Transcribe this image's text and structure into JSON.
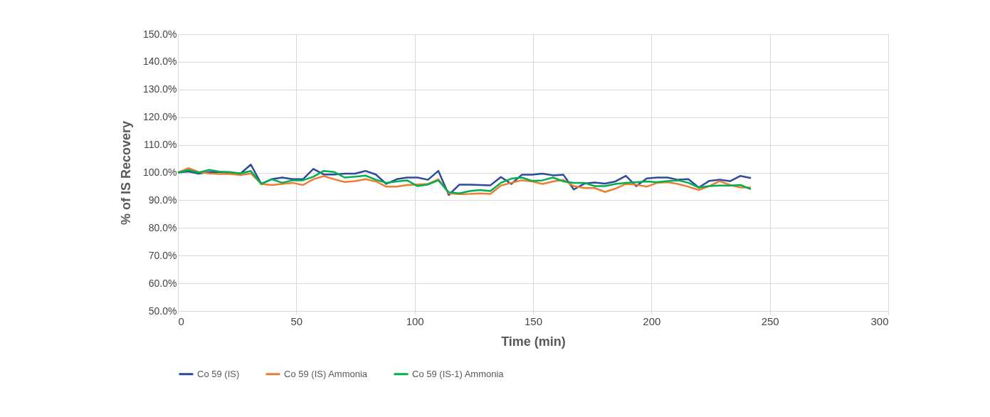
{
  "chart_data": {
    "type": "line",
    "xlabel": "Time (min)",
    "ylabel": "% of IS Recovery",
    "x": [
      0,
      4.4,
      8.8,
      13.2,
      17.6,
      22,
      26.4,
      30.8,
      35.2,
      39.6,
      44,
      48.4,
      52.8,
      57.2,
      61.6,
      66,
      70.4,
      74.8,
      79.2,
      83.6,
      88,
      92.4,
      96.8,
      101.2,
      105.6,
      110,
      114.4,
      118.8,
      123.2,
      127.6,
      132,
      136.4,
      140.8,
      145.2,
      149.6,
      154,
      158.4,
      162.8,
      167.2,
      171.6,
      176,
      180.4,
      184.8,
      189.2,
      193.6,
      198,
      202.4,
      206.8,
      211.2,
      215.6,
      220,
      224.4,
      228.8,
      233.2,
      237.6,
      242
    ],
    "series": [
      {
        "name": "Co 59 (IS)",
        "color": "#2e4a9c",
        "values": [
          100.0,
          100.4,
          99.6,
          100.2,
          100.2,
          99.9,
          99.6,
          102.9,
          95.9,
          97.6,
          98.2,
          97.6,
          97.6,
          101.3,
          99.3,
          99.3,
          99.6,
          99.6,
          100.6,
          99.3,
          95.9,
          97.6,
          98.2,
          98.2,
          97.4,
          100.6,
          91.9,
          95.6,
          95.6,
          95.5,
          95.4,
          98.4,
          95.9,
          99.2,
          99.2,
          99.6,
          99.0,
          99.2,
          93.9,
          96.0,
          96.4,
          96.0,
          96.8,
          98.8,
          95.1,
          97.9,
          98.2,
          98.2,
          97.4,
          97.6,
          94.6,
          97.0,
          97.4,
          96.9,
          98.8,
          98.0
        ]
      },
      {
        "name": "Co 59 (IS) Ammonia",
        "color": "#ed7d31",
        "values": [
          100.0,
          101.6,
          100.2,
          99.7,
          99.5,
          99.5,
          99.1,
          99.7,
          95.9,
          95.5,
          95.9,
          96.3,
          95.5,
          97.6,
          98.7,
          97.6,
          96.6,
          96.9,
          97.6,
          96.8,
          94.9,
          94.9,
          95.5,
          95.7,
          95.9,
          97.6,
          92.5,
          92.2,
          92.3,
          92.5,
          92.3,
          95.3,
          96.3,
          97.2,
          96.8,
          95.9,
          96.8,
          97.4,
          95.1,
          94.4,
          94.4,
          93.0,
          94.2,
          95.9,
          95.6,
          94.9,
          96.3,
          96.5,
          95.9,
          94.9,
          93.7,
          95.1,
          96.9,
          95.5,
          94.6,
          94.6
        ]
      },
      {
        "name": "Co 59 (IS-1) Ammonia",
        "color": "#00b050",
        "values": [
          100,
          100.9,
          100,
          101,
          100.3,
          100.2,
          99.7,
          100.6,
          95.9,
          97.6,
          96.3,
          97.2,
          97.2,
          98.5,
          100.6,
          100.2,
          98.2,
          98.5,
          98.9,
          97.4,
          96.3,
          96.8,
          97.2,
          95.1,
          95.7,
          97.2,
          92.9,
          92.5,
          93.3,
          93.7,
          93.3,
          96.3,
          97.8,
          98.2,
          97.0,
          97.2,
          98.2,
          96.8,
          96.3,
          96.3,
          95.1,
          95.1,
          95.9,
          96.3,
          96.5,
          96.8,
          96.5,
          96.9,
          97.2,
          96.3,
          94.6,
          95.1,
          95.3,
          95.3,
          95.5,
          94.0
        ]
      }
    ],
    "xlim": [
      0,
      300
    ],
    "xticks": [
      0,
      50,
      100,
      150,
      200,
      250,
      300
    ],
    "ylim": [
      50,
      150
    ],
    "yticks": [
      {
        "value": 50,
        "label": "50.0%"
      },
      {
        "value": 60,
        "label": "60.0%"
      },
      {
        "value": 70,
        "label": "70.0%"
      },
      {
        "value": 80,
        "label": "80.0%"
      },
      {
        "value": 90,
        "label": "90.0%"
      },
      {
        "value": 100,
        "label": "100.0%"
      },
      {
        "value": 110,
        "label": "110.0%"
      },
      {
        "value": 120,
        "label": "120.0%"
      },
      {
        "value": 130,
        "label": "130.0%"
      },
      {
        "value": 140,
        "label": "140.0%"
      },
      {
        "value": 150,
        "label": "150.0%"
      }
    ],
    "grid": true,
    "legend": "bottom",
    "marker": "none",
    "line_style": "solid"
  }
}
